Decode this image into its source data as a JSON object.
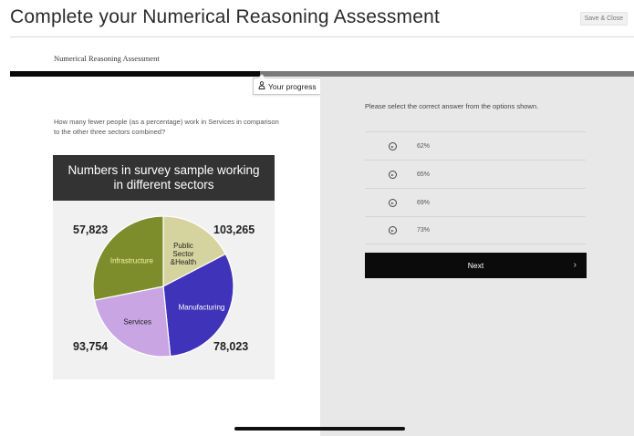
{
  "header": {
    "title": "Complete your Numerical Reasoning Assessment",
    "close_label": "Save & Close"
  },
  "assessment": {
    "label": "Numerical Reasoning Assessment",
    "progress_label": "Your progress",
    "progress_fraction": 0.4
  },
  "question": {
    "text": "How many fewer people (as a percentage) work in Services in comparison to the other three sectors combined?"
  },
  "chart_data": {
    "type": "pie",
    "title": "Numbers in survey sample working in different sectors",
    "slices": [
      {
        "name": "Public Sector &Health",
        "value": 57823,
        "display": "57,823",
        "color": "#d6d49e"
      },
      {
        "name": "Manufacturing",
        "value": 103265,
        "display": "103,265",
        "color": "#3f34b9"
      },
      {
        "name": "Services",
        "value": 78023,
        "display": "78,023",
        "color": "#c9a5e4"
      },
      {
        "name": "Infrastructure",
        "value": 93754,
        "display": "93,754",
        "color": "#7e8d2c"
      }
    ]
  },
  "answer_panel": {
    "instruction": "Please select the correct answer from the options shown.",
    "options": [
      "62%",
      "65%",
      "69%",
      "73%"
    ],
    "next_label": "Next",
    "next_chevron": "›"
  },
  "icons": {
    "progress_icon": "person-icon",
    "option_icon": "arrow-circle-right-icon"
  }
}
